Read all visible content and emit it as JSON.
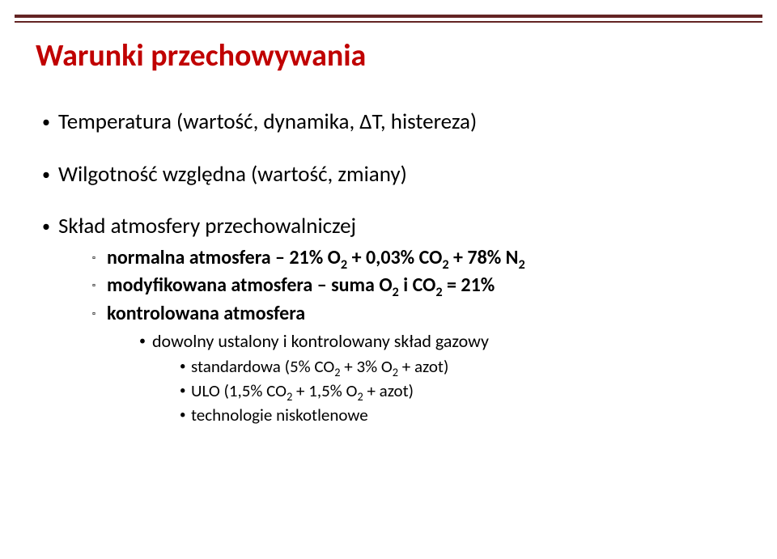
{
  "title": "Warunki przechowywania",
  "colors": {
    "title": "#c00000",
    "rule": "#632423",
    "text": "#000000",
    "background": "#ffffff"
  },
  "bullets": {
    "b1": "Temperatura (wartość, dynamika, ΔT, histereza)",
    "b2": "Wilgotność względna (wartość, zmiany)",
    "b3": "Skład atmosfery przechowalniczej",
    "b3_1_prefix": "normalna atmosfera – 21% O",
    "b3_1_mid": " + 0,03% CO",
    "b3_1_end": " + 78% N",
    "b3_2_prefix": "modyfikowana atmosfera – suma O",
    "b3_2_mid": " i CO",
    "b3_2_end": " = 21%",
    "b3_3": "kontrolowana atmosfera",
    "b3_3_1": "dowolny ustalony i kontrolowany skład gazowy",
    "b3_3_1_1_prefix": "standardowa (5% CO",
    "b3_3_1_1_mid": " + 3% O",
    "b3_3_1_1_end": " + azot)",
    "b3_3_1_2_prefix": "ULO (1,5% CO",
    "b3_3_1_2_mid": " + 1,5% O",
    "b3_3_1_2_end": " + azot)",
    "b3_3_1_3": "technologie niskotlenowe",
    "sub2": "2"
  }
}
